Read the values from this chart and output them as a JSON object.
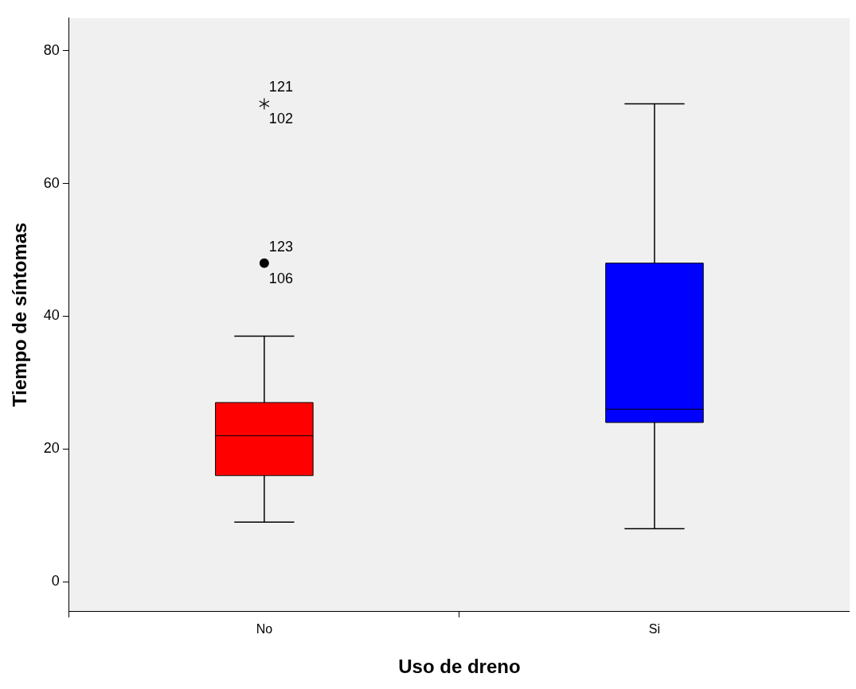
{
  "chart_data": {
    "type": "box",
    "xlabel": "Uso de dreno",
    "ylabel": "Tiempo de síntomas",
    "categories": [
      "No",
      "Si"
    ],
    "colors": [
      "#ff0000",
      "#0000ff"
    ],
    "boxes": [
      {
        "low": 9,
        "q1": 16,
        "median": 22,
        "q3": 27,
        "high": 37,
        "outliers": [
          48,
          72
        ]
      },
      {
        "low": 8,
        "q1": 24,
        "median": 26,
        "q3": 48,
        "high": 72
      }
    ],
    "ylim": [
      -4.4,
      84.9
    ],
    "yticks": [
      0,
      20,
      40,
      60,
      80
    ],
    "grid": false,
    "legend": false,
    "annotations": [
      "123",
      "106",
      "121",
      "102"
    ]
  }
}
